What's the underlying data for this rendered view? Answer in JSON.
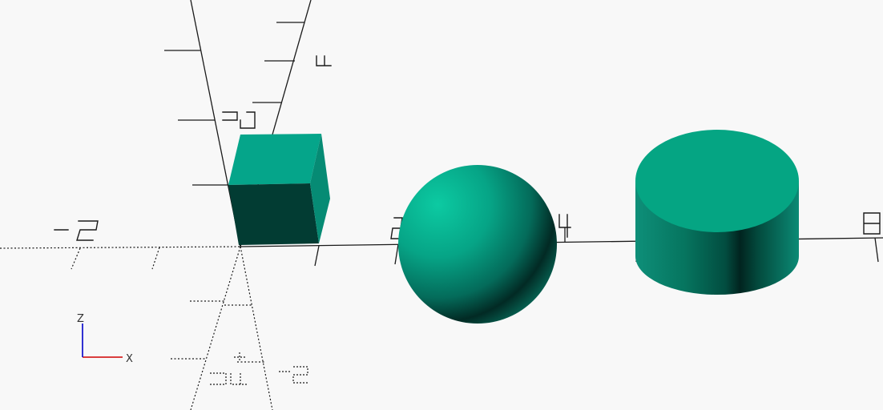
{
  "scene": {
    "background": "#f8f8f8",
    "model_color": "#05a58a",
    "objects": [
      "cube",
      "sphere",
      "cylinder"
    ]
  },
  "axes": {
    "labels": {
      "x_neg_2": "-2",
      "x_2": "2",
      "x_4": "4",
      "x_8": "8",
      "y_neg_2": "-2",
      "y_neg_4": "-4",
      "z_2": "2",
      "z_4": "4"
    }
  },
  "gizmo": {
    "x_label": "X",
    "z_label": "Z",
    "x_color": "#d00000",
    "z_color": "#0000c8"
  }
}
